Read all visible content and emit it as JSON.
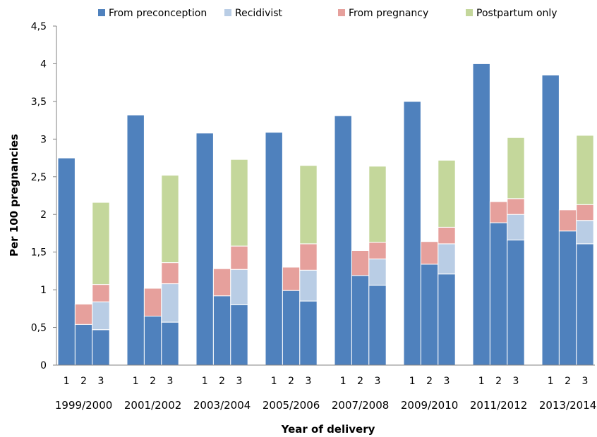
{
  "chart_data": {
    "type": "bar",
    "stacked": true,
    "xlabel": "Year of delivery",
    "ylabel": "Per 100 pregnancies",
    "ylim": [
      0,
      4.5
    ],
    "yticks": [
      "0",
      "0,5",
      "1",
      "1,5",
      "2",
      "2,5",
      "3",
      "3,5",
      "4",
      "4,5"
    ],
    "grid": false,
    "legend_position": "top",
    "categories": [
      "1999/2000",
      "2001/2002",
      "2003/2004",
      "2005/2006",
      "2007/2008",
      "2009/2010",
      "2011/2012",
      "2013/2014"
    ],
    "subcategories": [
      "1",
      "2",
      "3"
    ],
    "series": [
      {
        "name": "From preconception",
        "color": "#4F81BD",
        "values": [
          [
            2.75,
            0.54,
            0.47
          ],
          [
            3.32,
            0.65,
            0.57
          ],
          [
            3.08,
            0.92,
            0.8
          ],
          [
            3.09,
            0.99,
            0.85
          ],
          [
            3.31,
            1.19,
            1.06
          ],
          [
            3.5,
            1.34,
            1.21
          ],
          [
            4.0,
            1.89,
            1.66
          ],
          [
            3.85,
            1.78,
            1.61
          ]
        ]
      },
      {
        "name": "Recidivist",
        "color": "#B9CDE5",
        "values": [
          [
            0,
            0,
            0.37
          ],
          [
            0,
            0,
            0.51
          ],
          [
            0,
            0,
            0.47
          ],
          [
            0,
            0,
            0.41
          ],
          [
            0,
            0,
            0.35
          ],
          [
            0,
            0,
            0.4
          ],
          [
            0,
            0,
            0.34
          ],
          [
            0,
            0,
            0.31
          ]
        ]
      },
      {
        "name": "From pregnancy",
        "color": "#E6A09C",
        "values": [
          [
            0,
            0.27,
            0.23
          ],
          [
            0,
            0.37,
            0.28
          ],
          [
            0,
            0.36,
            0.31
          ],
          [
            0,
            0.31,
            0.35
          ],
          [
            0,
            0.33,
            0.22
          ],
          [
            0,
            0.3,
            0.22
          ],
          [
            0,
            0.28,
            0.21
          ],
          [
            0,
            0.28,
            0.21
          ]
        ]
      },
      {
        "name": "Postpartum only",
        "color": "#C4D79B",
        "values": [
          [
            0,
            0,
            1.09
          ],
          [
            0,
            0,
            1.16
          ],
          [
            0,
            0,
            1.15
          ],
          [
            0,
            0,
            1.04
          ],
          [
            0,
            0,
            1.01
          ],
          [
            0,
            0,
            0.89
          ],
          [
            0,
            0,
            0.81
          ],
          [
            0,
            0,
            0.92
          ]
        ]
      }
    ]
  }
}
